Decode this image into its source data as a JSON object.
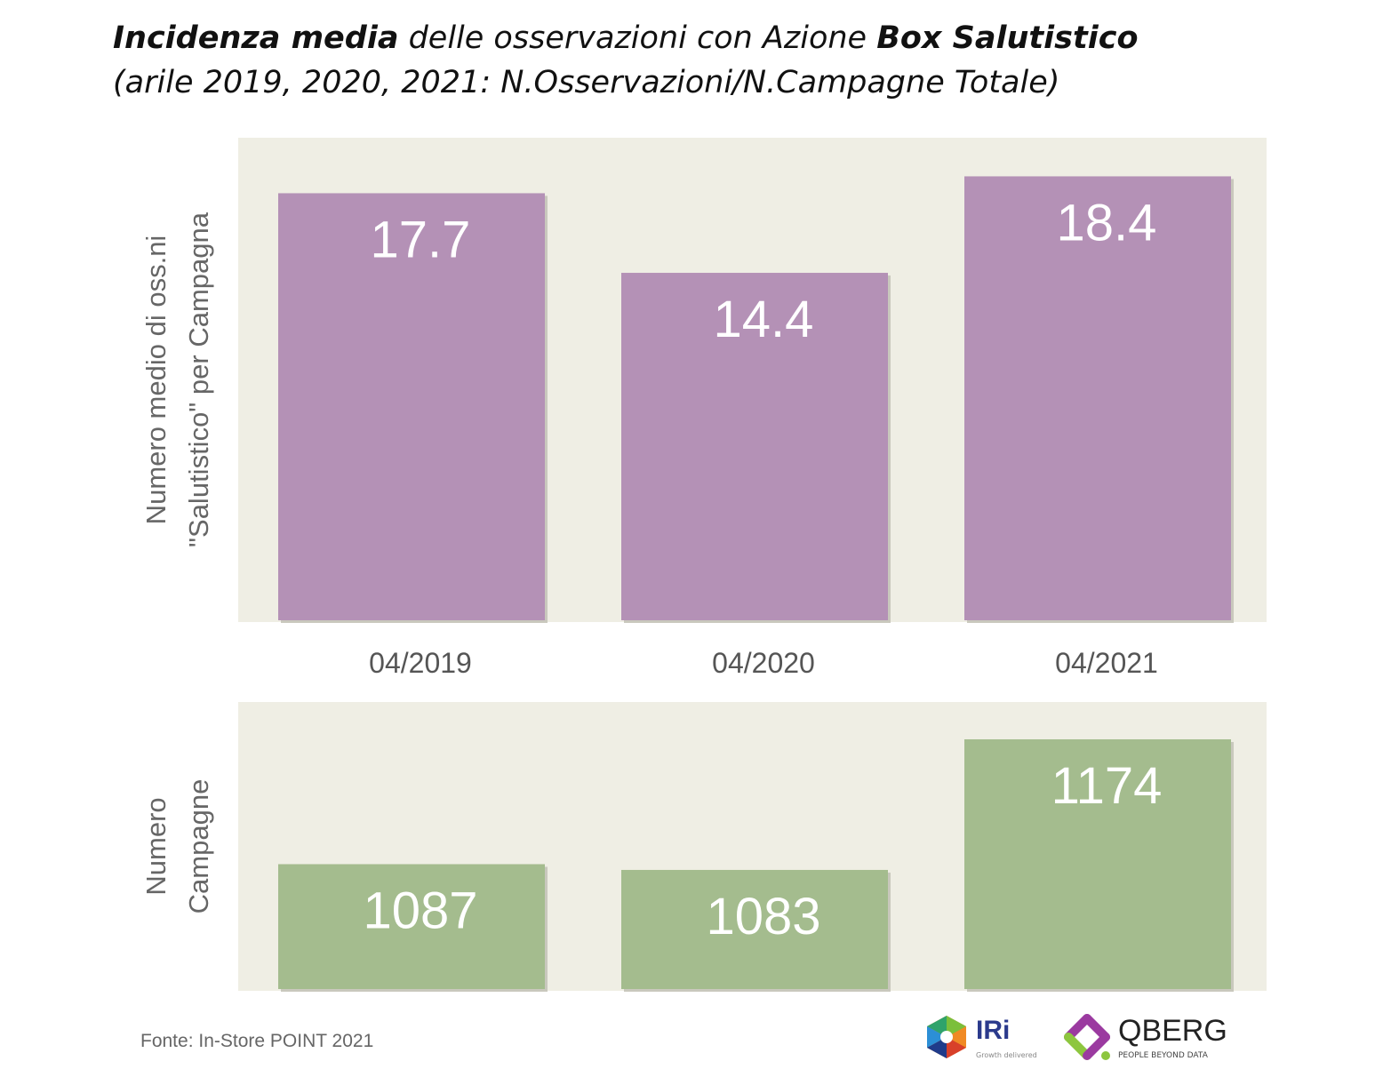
{
  "title": {
    "bold1": "Incidenza media",
    "mid": " delle osservazioni con Azione ",
    "bold2": "Box Salutistico",
    "line2": "(arile 2019, 2020, 2021: N.Osservazioni/N.Campagne Totale)"
  },
  "source": "Fonte: In-Store POINT 2021",
  "logos": {
    "iri": "IRi",
    "iri_tagline": "Growth delivered",
    "qberg": "QBERG",
    "qberg_tagline": "PEOPLE BEYOND DATA"
  },
  "colors": {
    "panel": "#efeee4",
    "purple": "#b491b6",
    "green": "#a4bc8e"
  },
  "chart_data": [
    {
      "type": "bar",
      "categories": [
        "04/2019",
        "04/2020",
        "04/2021"
      ],
      "values": [
        17.7,
        14.4,
        18.4
      ],
      "ylabel_lines": [
        "Numero medio di oss.ni",
        "\"Salutistico\" per Campagna"
      ],
      "ylim": [
        0,
        20
      ],
      "grid": false
    },
    {
      "type": "bar",
      "categories": [
        "04/2019",
        "04/2020",
        "04/2021"
      ],
      "values": [
        1087,
        1083,
        1174
      ],
      "ylabel_lines": [
        "Numero",
        "Campagne"
      ],
      "ylim": [
        1000,
        1200
      ],
      "grid": false
    }
  ]
}
